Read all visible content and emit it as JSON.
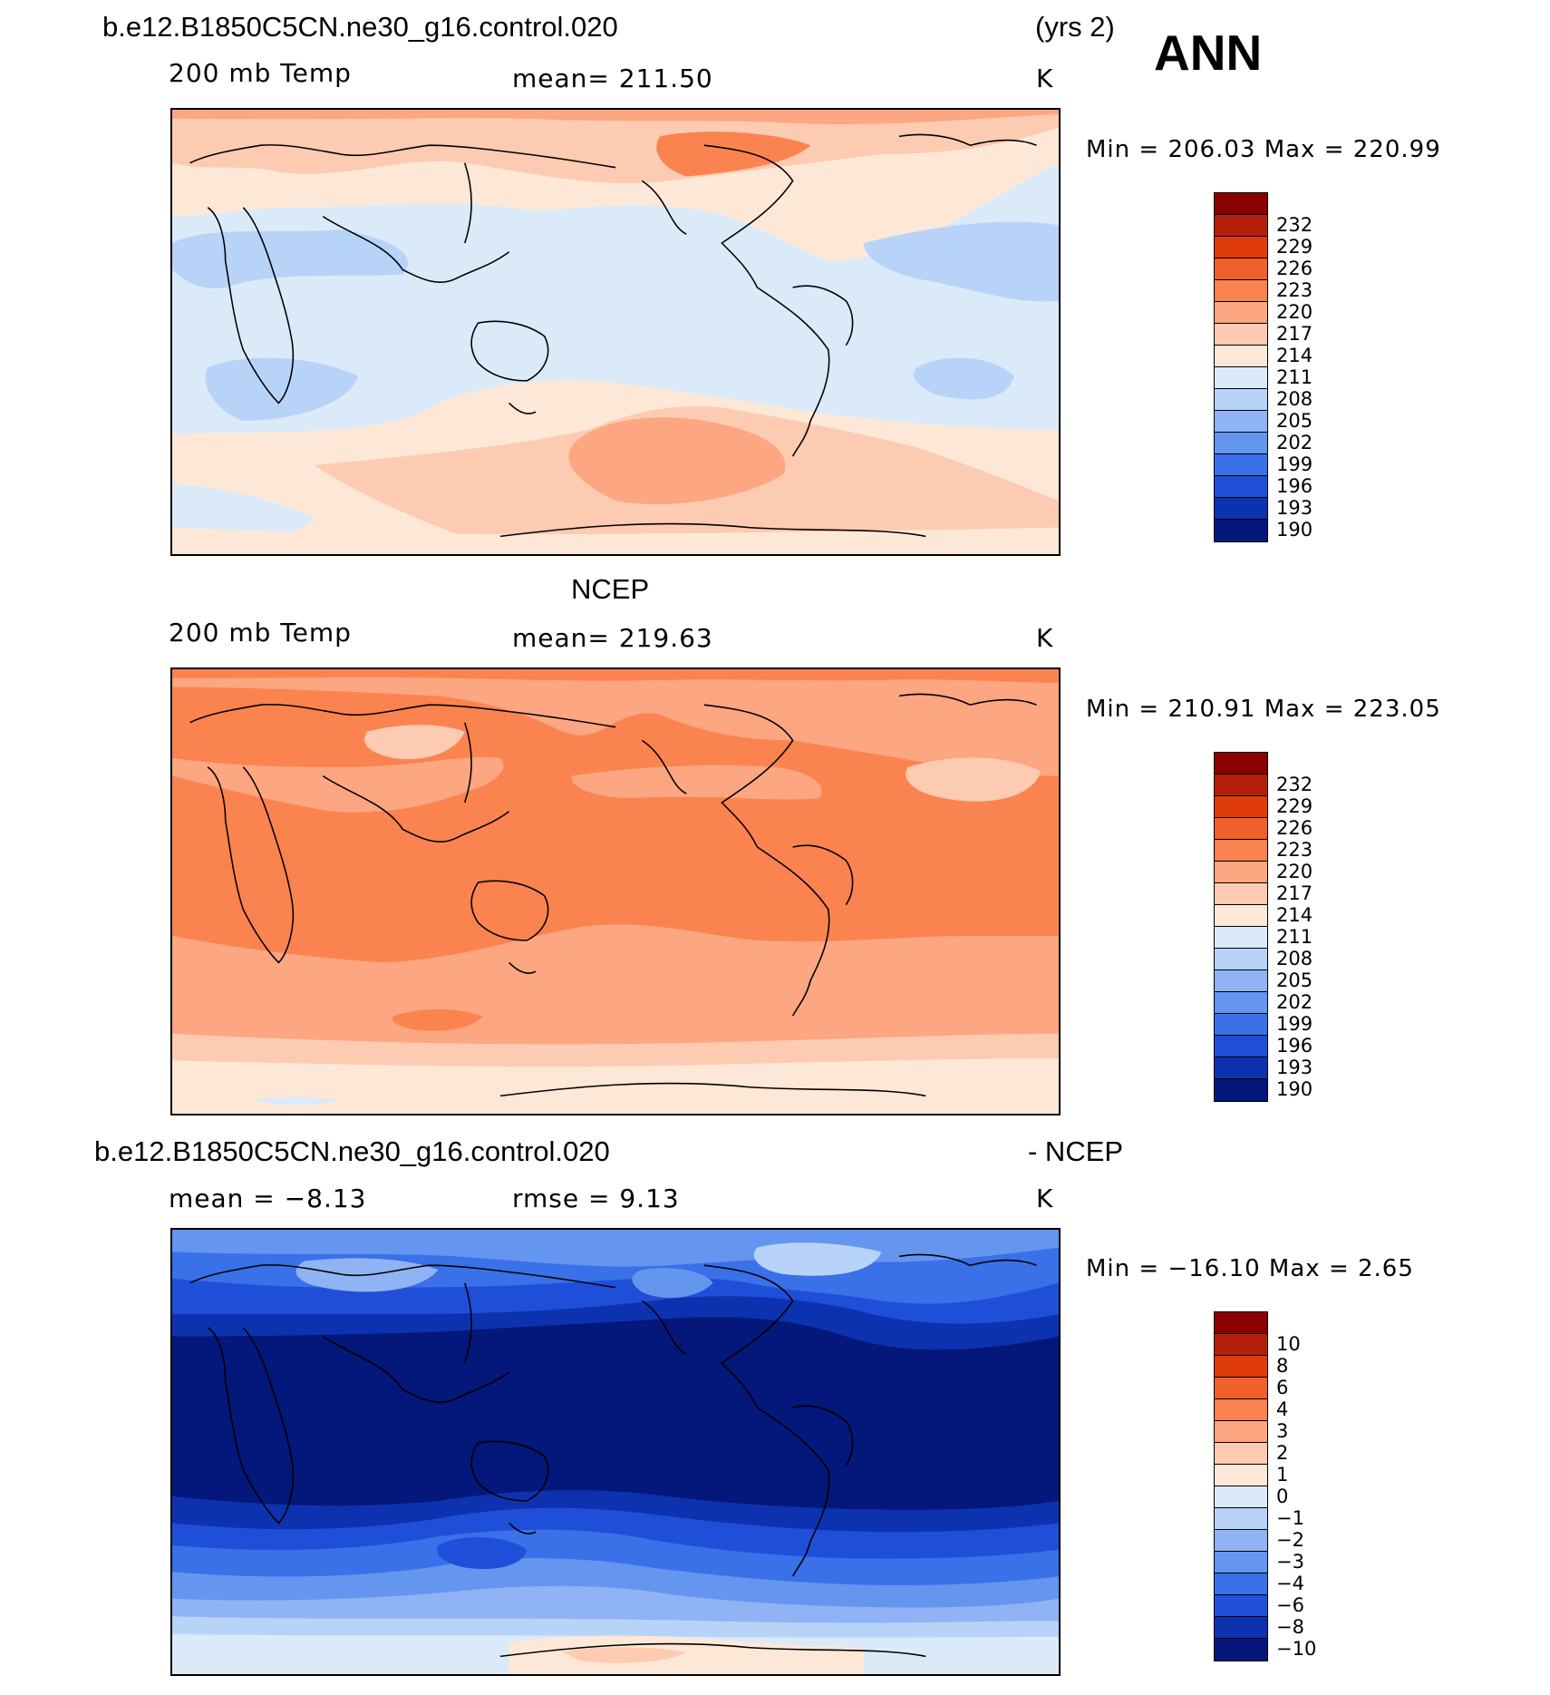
{
  "header": {
    "case_name": "b.e12.B1850C5CN.ne30_g16.control.020",
    "years": "(yrs 2)",
    "season": "ANN"
  },
  "panels": [
    {
      "title": "",
      "variable": "200 mb Temp",
      "stat": "mean= 211.50",
      "units": "K",
      "minmax": "Min = 206.03 Max = 220.99",
      "levels": [
        "232",
        "229",
        "226",
        "223",
        "220",
        "217",
        "214",
        "211",
        "208",
        "205",
        "202",
        "199",
        "196",
        "193",
        "190"
      ],
      "colors": [
        "#8b0000",
        "#b5200b",
        "#e03c0a",
        "#f0602a",
        "#fb8350",
        "#fca682",
        "#fdcbb1",
        "#fde8d7",
        "#dbeaf8",
        "#b8d3f8",
        "#8fb3f4",
        "#6496f0",
        "#3a70e8",
        "#1f4fd8",
        "#0d32b0",
        "#04177a"
      ],
      "field": {
        "base": "#dbeaf8",
        "contour_levels_K": [
          205,
          208,
          211,
          214,
          217,
          220,
          223
        ]
      }
    },
    {
      "title": "NCEP",
      "variable": "200 mb Temp",
      "stat": "mean= 219.63",
      "units": "K",
      "minmax": "Min = 210.91 Max = 223.05",
      "levels": [
        "232",
        "229",
        "226",
        "223",
        "220",
        "217",
        "214",
        "211",
        "208",
        "205",
        "202",
        "199",
        "196",
        "193",
        "190"
      ],
      "colors": [
        "#8b0000",
        "#b5200b",
        "#e03c0a",
        "#f0602a",
        "#fb8350",
        "#fca682",
        "#fdcbb1",
        "#fde8d7",
        "#dbeaf8",
        "#b8d3f8",
        "#8fb3f4",
        "#6496f0",
        "#3a70e8",
        "#1f4fd8",
        "#0d32b0",
        "#04177a"
      ],
      "field": {
        "base": "#fb8350",
        "contour_levels_K": [
          208,
          211,
          214,
          217,
          220,
          223
        ]
      }
    },
    {
      "title": "b.e12.B1850C5CN.ne30_g16.control.020",
      "title_suffix": "- NCEP",
      "variable": "mean =   −8.13",
      "stat": "rmse =     9.13",
      "units": "K",
      "minmax": "Min = −16.10 Max =    2.65",
      "levels": [
        "10",
        "8",
        "6",
        "4",
        "3",
        "2",
        "1",
        "0",
        "−1",
        "−2",
        "−3",
        "−4",
        "−6",
        "−8",
        "−10"
      ],
      "colors": [
        "#8b0000",
        "#b5200b",
        "#e03c0a",
        "#f0602a",
        "#fb8350",
        "#fca682",
        "#fdcbb1",
        "#fde8d7",
        "#dbeaf8",
        "#b8d3f8",
        "#8fb3f4",
        "#6496f0",
        "#3a70e8",
        "#1f4fd8",
        "#0d32b0",
        "#04177a"
      ],
      "field": {
        "base": "#04177a",
        "contour_levels_K": [
          -10,
          -8,
          -6,
          -4,
          -3,
          -2,
          -1,
          0,
          1
        ]
      }
    }
  ]
}
